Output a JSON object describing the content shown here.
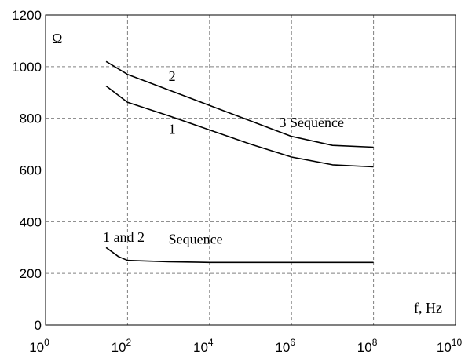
{
  "chart_data": {
    "type": "line",
    "title": "",
    "x_scale": "log",
    "xlim": [
      1,
      10000000000
    ],
    "ylim": [
      0,
      1200
    ],
    "xlabel": "f, Hz",
    "ylabel": "Ω",
    "grid": true,
    "x_ticks": [
      {
        "value": 1,
        "base": "10",
        "exp": "0"
      },
      {
        "value": 100,
        "base": "10",
        "exp": "2"
      },
      {
        "value": 10000,
        "base": "10",
        "exp": "4"
      },
      {
        "value": 1000000,
        "base": "10",
        "exp": "6"
      },
      {
        "value": 100000000,
        "base": "10",
        "exp": "8"
      },
      {
        "value": 10000000000,
        "base": "10",
        "exp": "10"
      }
    ],
    "y_ticks": [
      {
        "value": 0,
        "label": "0"
      },
      {
        "value": 200,
        "label": "200"
      },
      {
        "value": 400,
        "label": "400"
      },
      {
        "value": 600,
        "label": "600"
      },
      {
        "value": 800,
        "label": "800"
      },
      {
        "value": 1000,
        "label": "1000"
      },
      {
        "value": 1200,
        "label": "1200"
      }
    ],
    "series": [
      {
        "name": "2",
        "x": [
          30,
          100,
          1000,
          10000,
          100000,
          1000000,
          10000000,
          100000000
        ],
        "y": [
          1020,
          970,
          910,
          850,
          790,
          730,
          695,
          688
        ]
      },
      {
        "name": "1",
        "x": [
          30,
          100,
          1000,
          10000,
          100000,
          1000000,
          10000000,
          100000000
        ],
        "y": [
          925,
          862,
          810,
          755,
          700,
          650,
          620,
          612
        ]
      },
      {
        "name": "",
        "x": [
          30,
          60,
          100,
          1000,
          10000,
          100000,
          1000000,
          10000000,
          100000000
        ],
        "y": [
          300,
          265,
          250,
          245,
          242,
          242,
          242,
          242,
          242
        ]
      }
    ],
    "annotations": [
      {
        "text": "2",
        "x": 1000,
        "y": 945
      },
      {
        "text": "1",
        "x": 1000,
        "y": 740
      },
      {
        "text": "3 Sequence",
        "x": 500000,
        "y": 765
      },
      {
        "text": "1 and 2",
        "x": 25,
        "y": 322
      },
      {
        "text": "Sequence",
        "x": 1000,
        "y": 314
      }
    ]
  }
}
